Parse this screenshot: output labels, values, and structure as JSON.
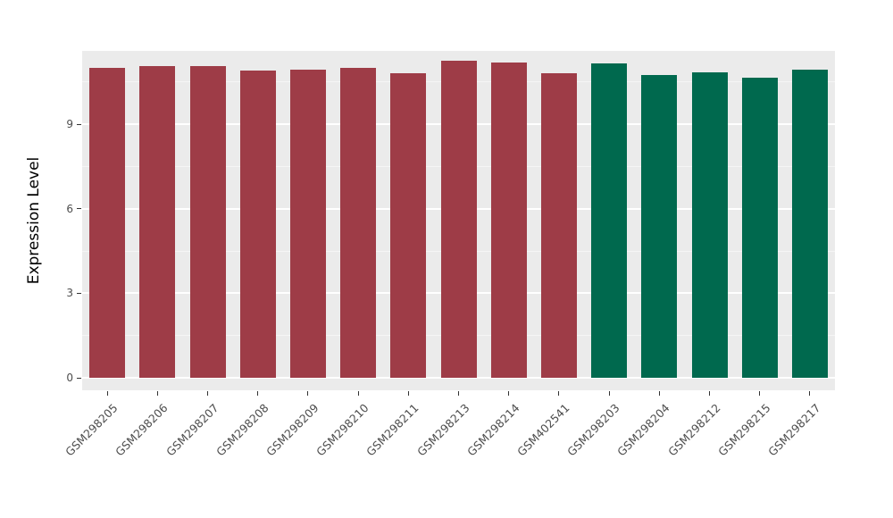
{
  "chart_data": {
    "type": "bar",
    "title": "",
    "xlabel": "",
    "ylabel": "Expression Level",
    "ylim": [
      0,
      11.6
    ],
    "yticks": [
      0,
      3,
      6,
      9
    ],
    "grid": "on",
    "legend": "none",
    "categories": [
      "GSM298205",
      "GSM298206",
      "GSM298207",
      "GSM298208",
      "GSM298209",
      "GSM298210",
      "GSM298211",
      "GSM298213",
      "GSM298214",
      "GSM402541",
      "GSM298203",
      "GSM298204",
      "GSM298212",
      "GSM298215",
      "GSM298217"
    ],
    "values": [
      11.0,
      11.05,
      11.05,
      10.9,
      10.95,
      11.0,
      10.8,
      11.25,
      11.2,
      10.8,
      11.15,
      10.75,
      10.85,
      10.65,
      10.95
    ],
    "bar_color_group1": "#9E3C47",
    "bar_color_group2": "#00694E",
    "group_assignment": [
      1,
      1,
      1,
      1,
      1,
      1,
      1,
      1,
      1,
      1,
      2,
      2,
      2,
      2,
      2
    ],
    "panel_background": "#EBEBEB",
    "gridline_color": "#FFFFFF"
  }
}
